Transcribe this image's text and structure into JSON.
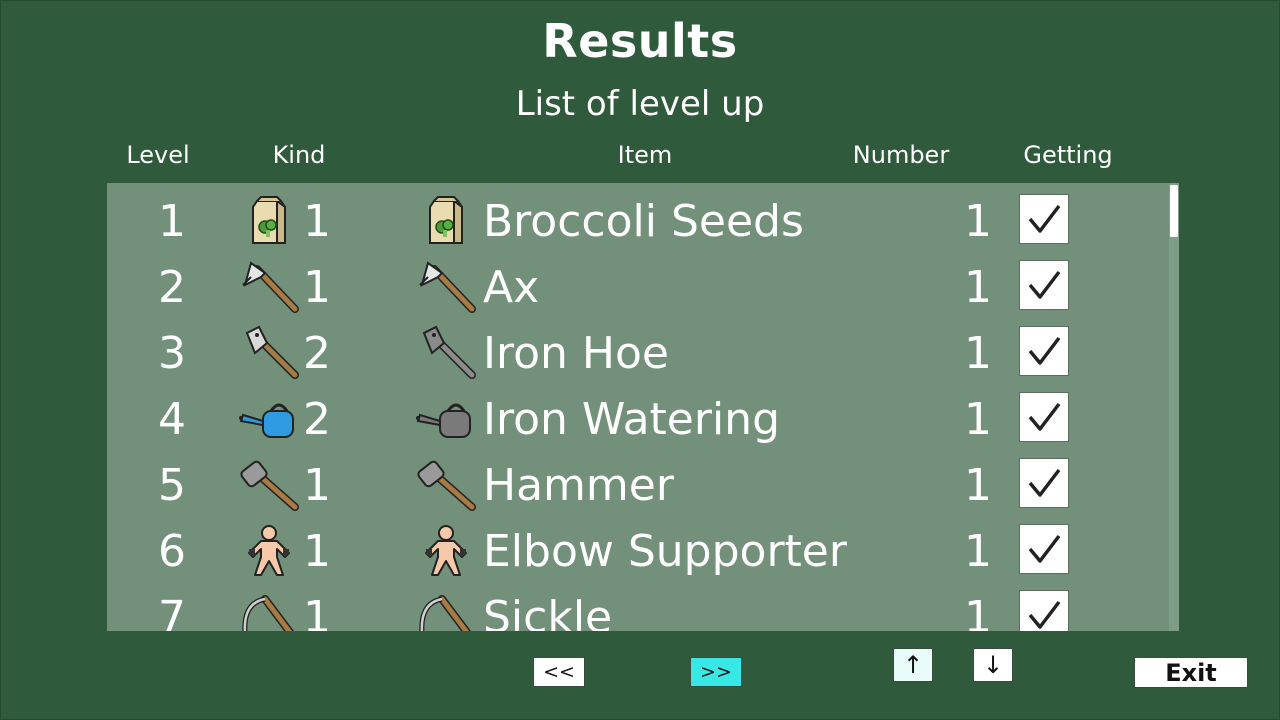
{
  "screen": {
    "title": "Results",
    "subtitle": "List of level up"
  },
  "columns": {
    "level": "Level",
    "kind": "Kind",
    "item": "Item",
    "number": "Number",
    "getting": "Getting"
  },
  "rows": [
    {
      "level": "1",
      "kind_icon": "seed-bag-icon",
      "kind_count": "1",
      "item_icon": "seed-bag-icon",
      "item": "Broccoli Seeds",
      "number": "1",
      "getting": true
    },
    {
      "level": "2",
      "kind_icon": "axe-icon",
      "kind_count": "1",
      "item_icon": "axe-icon",
      "item": "Ax",
      "number": "1",
      "getting": true
    },
    {
      "level": "3",
      "kind_icon": "hoe-icon",
      "kind_count": "2",
      "item_icon": "iron-hoe-icon",
      "item": "Iron Hoe",
      "number": "1",
      "getting": true
    },
    {
      "level": "4",
      "kind_icon": "watering-can-icon",
      "kind_count": "2",
      "item_icon": "iron-watering-can-icon",
      "item": "Iron Watering",
      "number": "1",
      "getting": true
    },
    {
      "level": "5",
      "kind_icon": "hammer-icon",
      "kind_count": "1",
      "item_icon": "hammer-icon",
      "item": "Hammer",
      "number": "1",
      "getting": true
    },
    {
      "level": "6",
      "kind_icon": "body-icon",
      "kind_count": "1",
      "item_icon": "body-icon",
      "item": "Elbow Supporter",
      "number": "1",
      "getting": true
    },
    {
      "level": "7",
      "kind_icon": "sickle-icon",
      "kind_count": "1",
      "item_icon": "sickle-icon",
      "item": "Sickle",
      "number": "1",
      "getting": true
    }
  ],
  "buttons": {
    "prev": "<<",
    "next": ">>",
    "up": "↑",
    "down": "↓",
    "exit": "Exit"
  },
  "colors": {
    "background": "#2f5a3b",
    "panel": "#72907a",
    "next_button": "#37e8e6"
  }
}
